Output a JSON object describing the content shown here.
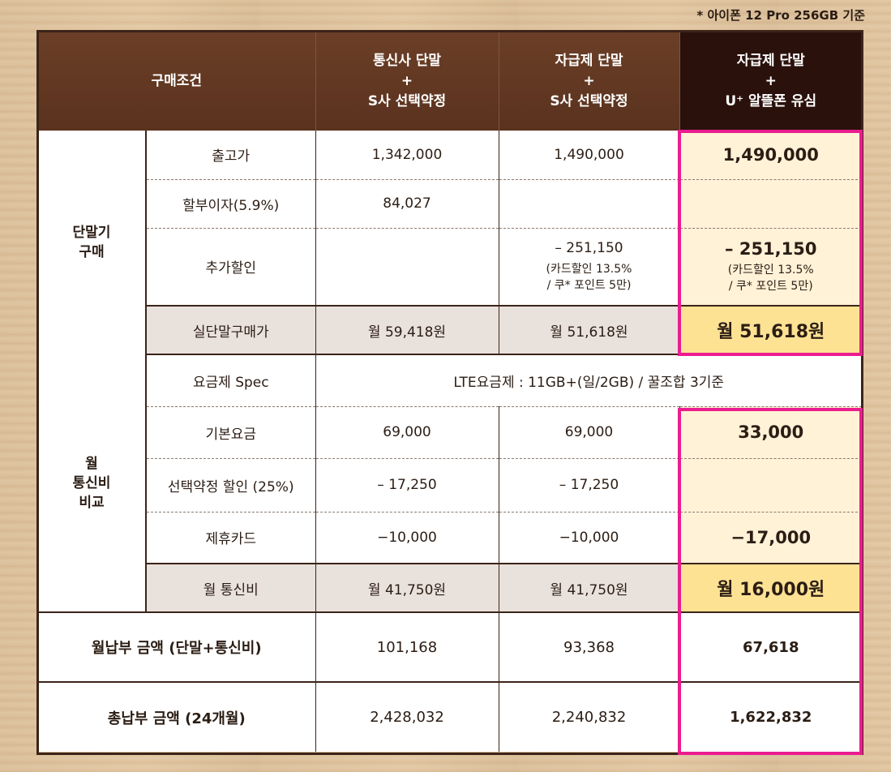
{
  "note": "* 아이폰 12 Pro 256GB 기준",
  "header": {
    "condition": "구매조건",
    "col1": [
      "통신사 단말",
      "+",
      "S사 선택약정"
    ],
    "col2": [
      "자급제 단말",
      "+",
      "S사 선택약정"
    ],
    "col3": [
      "자급제 단말",
      "+",
      "U⁺ 알뜰폰 유심"
    ]
  },
  "device": {
    "category": [
      "단말기",
      "구매"
    ],
    "rows": [
      {
        "label": "출고가",
        "v1": "1,342,000",
        "v2": "1,490,000",
        "v3": "1,490,000"
      },
      {
        "label": "할부이자(5.9%)",
        "v1": "84,027",
        "v2": "",
        "v3": ""
      },
      {
        "label": "추가할인",
        "v1": "",
        "v2": "– 251,150",
        "v2_note": [
          "(카드할인 13.5%",
          "/ 쿠* 포인트 5만)"
        ],
        "v3": "– 251,150",
        "v3_note": [
          "(카드할인 13.5%",
          "/ 쿠* 포인트 5만)"
        ]
      }
    ],
    "subtotal": {
      "label": "실단말구매가",
      "v1": "월 59,418원",
      "v2": "월 51,618원",
      "v3": "월 51,618원"
    }
  },
  "monthly": {
    "category": [
      "월",
      "통신비",
      "비교"
    ],
    "spec": {
      "label": "요금제 Spec",
      "value": "LTE요금제 : 11GB+(일/2GB) / 꿀조합 3기준"
    },
    "rows": [
      {
        "label": "기본요금",
        "v1": "69,000",
        "v2": "69,000",
        "v3": "33,000"
      },
      {
        "label": "선택약정 할인 (25%)",
        "v1": "– 17,250",
        "v2": "– 17,250",
        "v3": ""
      },
      {
        "label": "제휴카드",
        "v1": "−10,000",
        "v2": "−10,000",
        "v3": "−17,000"
      }
    ],
    "subtotal": {
      "label": "월 통신비",
      "v1": "월 41,750원",
      "v2": "월 41,750원",
      "v3": "월 16,000원"
    }
  },
  "totals": [
    {
      "label": "월납부 금액 (단말+통신비)",
      "v1": "101,168",
      "v2": "93,368",
      "v3": "67,618"
    },
    {
      "label": "총납부 금액 (24개월)",
      "v1": "2,428,032",
      "v2": "2,240,832",
      "v3": "1,622,832"
    }
  ],
  "colors": {
    "header_brown": "#5a321e",
    "header_dark": "#2b110c",
    "highlight_border": "#ea1c8f",
    "highlight_fill": "#fff2d7",
    "highlight_sum": "#fde294"
  }
}
